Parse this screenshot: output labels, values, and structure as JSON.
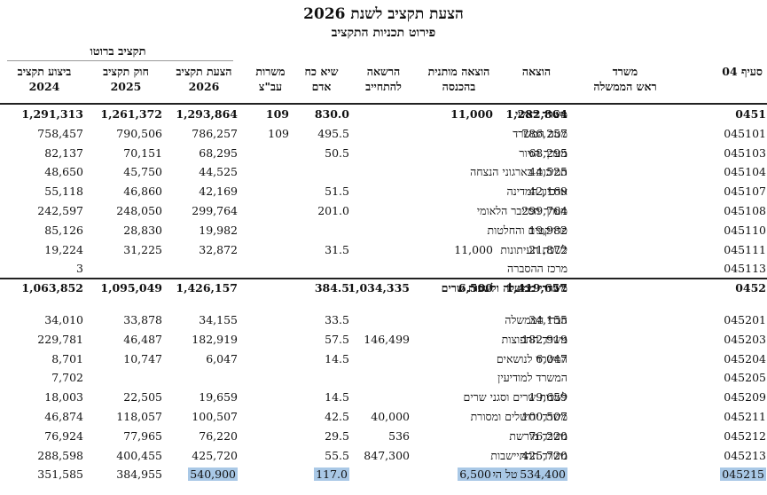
{
  "title": "הצעת תקציב לשנת 2026",
  "subtitle": "פירוט תכניות התקציב",
  "group_header": "תקציב ברוטו",
  "columns": {
    "section": "סעיף 04",
    "ministry": "משרד\nראש הממשלה",
    "expense": "הוצאה",
    "conditional": "הוצאה מותנית\nבהכנסה",
    "authority": "הרשאה\nלהתחייב",
    "manpower": "שיא כח\nאדם",
    "positions": "משרות\nעב\"צ",
    "proposal": "הצעת תקציב\n2026",
    "law": "חוק תקציב\n2025",
    "execution": "ביצוע תקציב\n2024"
  },
  "rows": [
    {
      "code": "0451",
      "name": "משרד ראשי",
      "bold": true,
      "expense": "1,282,864",
      "conditional": "11,000",
      "authority": "",
      "manpower": "830.0",
      "positions": "109",
      "proposal": "1,293,864",
      "law": "1,261,372",
      "execution": "1,291,313"
    },
    {
      "code": "045101",
      "name": "מטה המשרד",
      "expense": "786,257",
      "conditional": "",
      "authority": "",
      "manpower": "495.5",
      "positions": "109",
      "proposal": "786,257",
      "law": "790,506",
      "execution": "758,457"
    },
    {
      "code": "045103",
      "name": "מערך הגיור",
      "expense": "68,295",
      "conditional": "",
      "authority": "",
      "manpower": "50.5",
      "positions": "",
      "proposal": "68,295",
      "law": "70,151",
      "execution": "82,137"
    },
    {
      "code": "045104",
      "name": "תמיכות בארגוני הנצחה",
      "expense": "44,525",
      "conditional": "",
      "authority": "",
      "manpower": "",
      "positions": "",
      "proposal": "44,525",
      "law": "45,750",
      "execution": "48,650"
    },
    {
      "code": "045107",
      "name": "ארכיון המדינה",
      "expense": "42,169",
      "conditional": "",
      "authority": "",
      "manpower": "51.5",
      "positions": "",
      "proposal": "42,169",
      "law": "46,860",
      "execution": "55,118"
    },
    {
      "code": "045108",
      "name": "מערך הסייבר הלאומי",
      "expense": "299,764",
      "conditional": "",
      "authority": "",
      "manpower": "201.0",
      "positions": "",
      "proposal": "299,764",
      "law": "248,050",
      "execution": "242,597"
    },
    {
      "code": "045110",
      "name": "פרויקטים והחלטות",
      "expense": "19,982",
      "conditional": "",
      "authority": "",
      "manpower": "",
      "positions": "",
      "proposal": "19,982",
      "law": "28,830",
      "execution": "85,126"
    },
    {
      "code": "045111",
      "name": "לשכת העיתונות",
      "expense": "21,872",
      "conditional": "11,000",
      "authority": "",
      "manpower": "31.5",
      "positions": "",
      "proposal": "32,872",
      "law": "31,225",
      "execution": "19,224"
    },
    {
      "code": "045113",
      "name": "מרכז ההסברה",
      "expense": "",
      "conditional": "",
      "authority": "",
      "manpower": "",
      "positions": "",
      "proposal": "",
      "law": "",
      "execution": "3"
    },
    {
      "code": "0452",
      "name": "משרדי ממשלה ולשכות שרים",
      "bold": true,
      "two_line": true,
      "expense": "1,419,657",
      "conditional": "6,500",
      "authority": "1,034,335",
      "manpower": "384.5",
      "positions": "",
      "proposal": "1,426,157",
      "law": "1,095,049",
      "execution": "1,063,852"
    },
    {
      "code": "045201",
      "name": "חברי הממשלה",
      "expense": "34,155",
      "conditional": "",
      "authority": "",
      "manpower": "33.5",
      "positions": "",
      "proposal": "34,155",
      "law": "33,878",
      "execution": "34,010"
    },
    {
      "code": "045203",
      "name": "משרד התפוצות",
      "expense": "182,919",
      "conditional": "",
      "authority": "146,499",
      "manpower": "57.5",
      "positions": "",
      "proposal": "182,919",
      "law": "46,487",
      "execution": "229,781"
    },
    {
      "code": "045204",
      "name": "המשרד לנושאים",
      "expense": "6,047",
      "conditional": "",
      "authority": "",
      "manpower": "14.5",
      "positions": "",
      "proposal": "6,047",
      "law": "10,747",
      "execution": "8,701"
    },
    {
      "code": "045205",
      "name": "המשרד למודיעין",
      "expense": "",
      "conditional": "",
      "authority": "",
      "manpower": "",
      "positions": "",
      "proposal": "",
      "law": "",
      "execution": "7,702"
    },
    {
      "code": "045209",
      "name": "לשכות שרים וסגני שרים",
      "expense": "19,659",
      "conditional": "",
      "authority": "",
      "manpower": "14.5",
      "positions": "",
      "proposal": "19,659",
      "law": "22,505",
      "execution": "18,003"
    },
    {
      "code": "045211",
      "name": "משרד ירושלים ומסורת",
      "expense": "100,507",
      "conditional": "",
      "authority": "40,000",
      "manpower": "42.5",
      "positions": "",
      "proposal": "100,507",
      "law": "118,057",
      "execution": "46,874"
    },
    {
      "code": "045212",
      "name": "משרד מורשת",
      "expense": "76,220",
      "conditional": "",
      "authority": "536",
      "manpower": "29.5",
      "positions": "",
      "proposal": "76,220",
      "law": "77,965",
      "execution": "76,924"
    },
    {
      "code": "045213",
      "name": "משרד ההתיישבות",
      "expense": "425,720",
      "conditional": "",
      "authority": "847,300",
      "manpower": "55.5",
      "positions": "",
      "proposal": "425,720",
      "law": "400,455",
      "execution": "288,598"
    },
    {
      "code": "045215",
      "name": "מערך הדיגיטל הלאומי",
      "highlight": true,
      "expense": "534,400",
      "conditional": "6,500",
      "authority": "",
      "manpower": "117.0",
      "positions": "",
      "proposal": "540,900",
      "law": "384,955",
      "execution": "351,585"
    }
  ]
}
